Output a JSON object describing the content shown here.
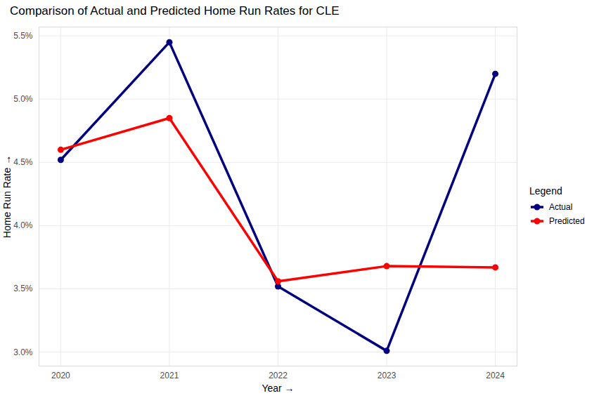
{
  "chart_data": {
    "type": "line",
    "title": "Comparison of Actual and Predicted Home Run Rates for CLE",
    "x_label": "Year",
    "y_label": "Home Run Rate",
    "legend_title": "Legend",
    "x": [
      2020,
      2021,
      2022,
      2023,
      2024
    ],
    "series": [
      {
        "name": "Actual",
        "color": "#000080",
        "values": [
          4.52,
          5.45,
          3.52,
          3.01,
          5.2
        ],
        "marker": "circle"
      },
      {
        "name": "Predicted",
        "color": "#ff0000",
        "values": [
          4.6,
          4.85,
          3.56,
          3.68,
          3.67
        ],
        "marker": "circle"
      }
    ],
    "xlim": [
      2019.8,
      2024.2
    ],
    "xticks": [
      2020,
      2021,
      2022,
      2023,
      2024
    ],
    "ylim": [
      2.89,
      5.57
    ],
    "yticks": [
      {
        "value": 3.0,
        "label": "3.0%"
      },
      {
        "value": 3.5,
        "label": "3.5%"
      },
      {
        "value": 4.0,
        "label": "4.0%"
      },
      {
        "value": 4.5,
        "label": "4.5%"
      },
      {
        "value": 5.0,
        "label": "5.0%"
      },
      {
        "value": 5.5,
        "label": "5.5%"
      }
    ],
    "grid": true,
    "legend": "right"
  }
}
